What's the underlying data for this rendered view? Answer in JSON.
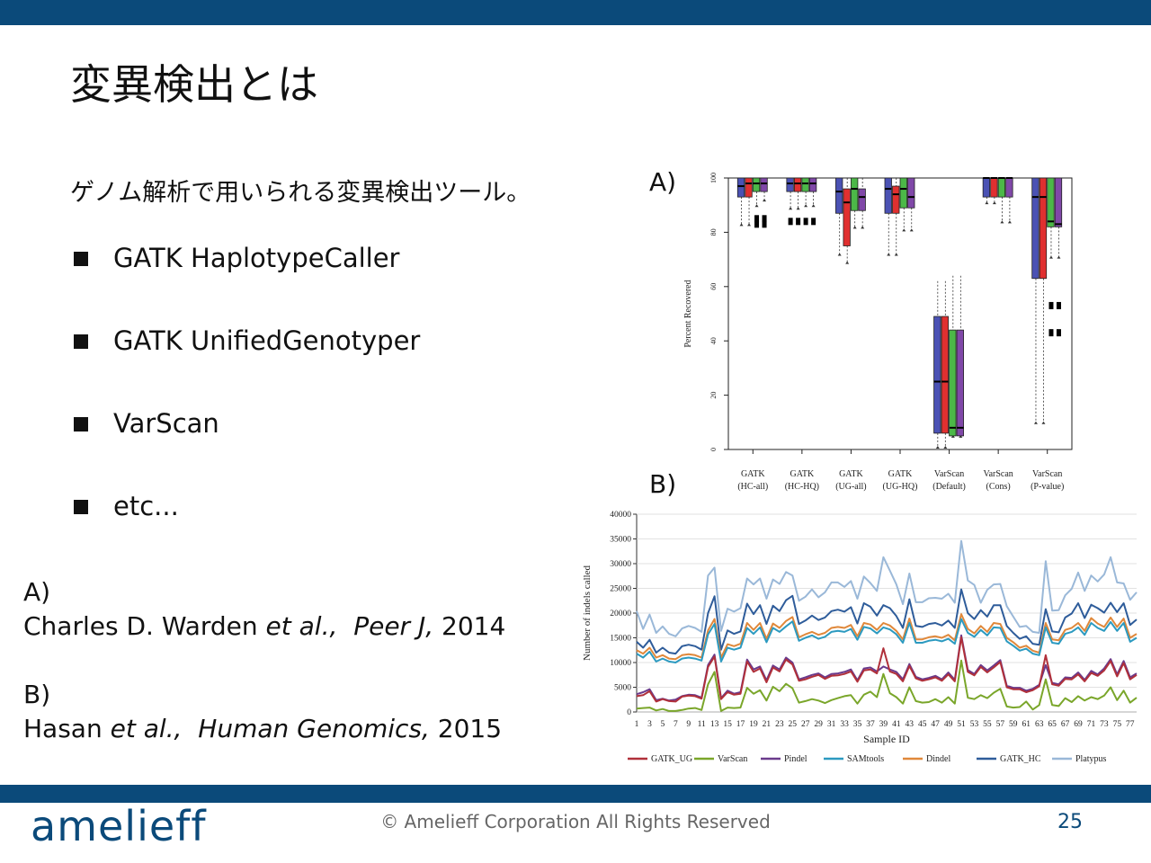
{
  "slide": {
    "title": "変異検出とは",
    "subtitle": "ゲノム解析で用いられる変異検出ツール。",
    "bullets": [
      "GATK HaplotypeCaller",
      "GATK UnifiedGenotyper",
      "VarScan",
      "etc..."
    ],
    "ref_a_label": "A)",
    "ref_a_author": "Charles D. Warden ",
    "ref_a_etal": "et al.,",
    "ref_a_journal": "Peer J,",
    "ref_a_year": "2014",
    "ref_b_label": "B)",
    "ref_b_author": "Hasan ",
    "ref_b_etal": "et al.,",
    "ref_b_journal": "Human Genomics,",
    "ref_b_year": "2015",
    "panel_a_label": "A)",
    "panel_b_label": "B)"
  },
  "footer": {
    "logo": "amelieff",
    "copyright": "© Amelieff Corporation All Rights Reserved",
    "page": "25"
  },
  "colors": {
    "bar": "#0b4a7a",
    "blue": "#4b52b4",
    "red": "#e03030",
    "green": "#4cb848",
    "purple": "#8048a8"
  },
  "chart_data": [
    {
      "type": "box",
      "ylabel": "Percent Recovered",
      "ylim": [
        0,
        100
      ],
      "yticks": [
        0,
        20,
        40,
        60,
        80,
        100
      ],
      "groups": [
        {
          "label1": "GATK",
          "label2": "(HC-all)",
          "boxes": [
            {
              "q1": 93,
              "med": 97,
              "q3": 100,
              "lo": 83,
              "hi": 100
            },
            {
              "q1": 93,
              "med": 98,
              "q3": 100,
              "lo": 83,
              "hi": 100
            },
            {
              "q1": 95,
              "med": 98,
              "q3": 100,
              "lo": 90,
              "hi": 100
            },
            {
              "q1": 95,
              "med": 98,
              "q3": 100,
              "lo": 92,
              "hi": 100
            }
          ],
          "outliers": [
            [
              2,
              83
            ],
            [
              2,
              85
            ],
            [
              3,
              83
            ],
            [
              3,
              85
            ]
          ]
        },
        {
          "label1": "GATK",
          "label2": "(HC-HQ)",
          "boxes": [
            {
              "q1": 95,
              "med": 98,
              "q3": 100,
              "lo": 89,
              "hi": 100
            },
            {
              "q1": 95,
              "med": 98,
              "q3": 100,
              "lo": 89,
              "hi": 100
            },
            {
              "q1": 95,
              "med": 98,
              "q3": 100,
              "lo": 90,
              "hi": 100
            },
            {
              "q1": 95,
              "med": 98,
              "q3": 100,
              "lo": 90,
              "hi": 100
            }
          ],
          "outliers": [
            [
              0,
              84
            ],
            [
              1,
              84
            ],
            [
              2,
              84
            ],
            [
              3,
              84
            ]
          ]
        },
        {
          "label1": "GATK",
          "label2": "(UG-all)",
          "boxes": [
            {
              "q1": 87,
              "med": 95,
              "q3": 100,
              "lo": 72,
              "hi": 100
            },
            {
              "q1": 75,
              "med": 91,
              "q3": 96,
              "lo": 69,
              "hi": 100
            },
            {
              "q1": 88,
              "med": 96,
              "q3": 100,
              "lo": 82,
              "hi": 100
            },
            {
              "q1": 88,
              "med": 93,
              "q3": 96,
              "lo": 82,
              "hi": 100
            }
          ],
          "outliers": []
        },
        {
          "label1": "GATK",
          "label2": "(UG-HQ)",
          "boxes": [
            {
              "q1": 87,
              "med": 96,
              "q3": 100,
              "lo": 72,
              "hi": 100
            },
            {
              "q1": 87,
              "med": 94,
              "q3": 97,
              "lo": 72,
              "hi": 100
            },
            {
              "q1": 89,
              "med": 96,
              "q3": 100,
              "lo": 81,
              "hi": 100
            },
            {
              "q1": 89,
              "med": 93,
              "q3": 100,
              "lo": 81,
              "hi": 100
            }
          ],
          "outliers": []
        },
        {
          "label1": "VarScan",
          "label2": "(Default)",
          "boxes": [
            {
              "q1": 6,
              "med": 25,
              "q3": 49,
              "lo": 1,
              "hi": 62
            },
            {
              "q1": 6,
              "med": 25,
              "q3": 49,
              "lo": 1,
              "hi": 62
            },
            {
              "q1": 5,
              "med": 8,
              "q3": 44,
              "lo": 5,
              "hi": 64
            },
            {
              "q1": 5,
              "med": 8,
              "q3": 44,
              "lo": 5,
              "hi": 64
            }
          ],
          "outliers": []
        },
        {
          "label1": "VarScan",
          "label2": "(Cons)",
          "boxes": [
            {
              "q1": 93,
              "med": 100,
              "q3": 100,
              "lo": 91,
              "hi": 100
            },
            {
              "q1": 93,
              "med": 100,
              "q3": 100,
              "lo": 91,
              "hi": 100
            },
            {
              "q1": 93,
              "med": 100,
              "q3": 100,
              "lo": 84,
              "hi": 100
            },
            {
              "q1": 93,
              "med": 100,
              "q3": 100,
              "lo": 84,
              "hi": 100
            }
          ],
          "outliers": []
        },
        {
          "label1": "VarScan",
          "label2": "(P-value)",
          "boxes": [
            {
              "q1": 63,
              "med": 93,
              "q3": 100,
              "lo": 10,
              "hi": 100
            },
            {
              "q1": 63,
              "med": 93,
              "q3": 100,
              "lo": 10,
              "hi": 100
            },
            {
              "q1": 82,
              "med": 84,
              "q3": 100,
              "lo": 71,
              "hi": 100
            },
            {
              "q1": 82,
              "med": 83,
              "q3": 100,
              "lo": 71,
              "hi": 100
            }
          ],
          "outliers": [
            [
              2,
              53
            ],
            [
              2,
              43
            ],
            [
              3,
              53
            ],
            [
              3,
              43
            ]
          ]
        }
      ]
    },
    {
      "type": "line",
      "xlabel": "Sample ID",
      "ylabel": "Number of indels called",
      "ylim": [
        0,
        40000
      ],
      "yticks": [
        0,
        5000,
        10000,
        15000,
        20000,
        25000,
        30000,
        35000,
        40000
      ],
      "xticks": [
        1,
        3,
        5,
        7,
        9,
        11,
        13,
        15,
        17,
        19,
        21,
        23,
        25,
        27,
        29,
        31,
        33,
        35,
        37,
        39,
        41,
        43,
        45,
        47,
        49,
        51,
        53,
        55,
        57,
        59,
        61,
        63,
        65,
        67,
        69,
        71,
        73,
        75,
        77
      ],
      "x_first": 1,
      "x_last": 78,
      "series": [
        {
          "name": "GATK_UG",
          "color": "#b0303a",
          "values": [
            3200,
            3400,
            4200,
            2100,
            2600,
            2200,
            2100,
            3100,
            3300,
            3200,
            2700,
            9100,
            11200,
            2600,
            4000,
            3500,
            3700,
            10200,
            8100,
            8800,
            6000,
            9000,
            8200,
            10600,
            9600,
            6300,
            6600,
            7100,
            7500,
            6700,
            7300,
            7400,
            7700,
            8200,
            6100,
            8400,
            8600,
            7800,
            12900,
            8200,
            7700,
            6200,
            9300,
            6800,
            6300,
            6600,
            7000,
            6300,
            7600,
            6200,
            15100,
            8100,
            7400,
            9100,
            8000,
            9000,
            10100,
            5000,
            4600,
            4600,
            4000,
            4400,
            5200,
            11500,
            5600,
            5300,
            6700,
            6600,
            7600,
            6200,
            7900,
            7300,
            8400,
            10300,
            7200,
            9900,
            6600,
            7500
          ]
        },
        {
          "name": "VarScan",
          "color": "#7aa62a",
          "values": [
            700,
            800,
            900,
            300,
            600,
            200,
            200,
            400,
            700,
            800,
            400,
            5600,
            8100,
            200,
            900,
            800,
            900,
            4900,
            3700,
            4400,
            2300,
            5100,
            4200,
            5700,
            4800,
            1900,
            2200,
            2600,
            2300,
            1800,
            2400,
            2800,
            3200,
            3400,
            1700,
            3500,
            4100,
            3000,
            7700,
            3800,
            3000,
            1700,
            5000,
            2200,
            1900,
            2000,
            2600,
            1900,
            3000,
            1700,
            10400,
            2900,
            2600,
            3400,
            2800,
            3900,
            4700,
            1100,
            900,
            1000,
            2100,
            500,
            1400,
            6600,
            1400,
            1200,
            2800,
            2000,
            3200,
            2300,
            3000,
            2600,
            3300,
            5000,
            2400,
            4300,
            1900,
            2900
          ]
        },
        {
          "name": "Pindel",
          "color": "#6a3a8c",
          "values": [
            3600,
            4000,
            4600,
            2400,
            2700,
            2300,
            2500,
            3200,
            3500,
            3400,
            2900,
            9500,
            11600,
            2800,
            4300,
            3700,
            4000,
            10600,
            8600,
            9200,
            6400,
            9400,
            8600,
            11000,
            10000,
            6600,
            7000,
            7500,
            7800,
            7000,
            7700,
            7800,
            8100,
            8600,
            6400,
            8800,
            9000,
            8200,
            9200,
            8600,
            8100,
            6600,
            9700,
            7100,
            6600,
            6900,
            7300,
            6600,
            8000,
            6500,
            15500,
            8500,
            7700,
            9500,
            8400,
            9400,
            10500,
            5300,
            4900,
            4900,
            4300,
            4700,
            5500,
            9500,
            5900,
            5600,
            7000,
            6900,
            8000,
            6500,
            8300,
            7600,
            8800,
            10700,
            7600,
            10300,
            7000,
            7800
          ]
        },
        {
          "name": "SAMtools",
          "color": "#2c9ac0",
          "values": [
            11800,
            11000,
            12200,
            10200,
            10800,
            10200,
            10000,
            10800,
            11000,
            10800,
            10400,
            15700,
            17800,
            10200,
            13000,
            12600,
            13000,
            17000,
            15800,
            17100,
            14100,
            17000,
            16200,
            17300,
            18300,
            14400,
            15000,
            15500,
            14800,
            15200,
            16200,
            16400,
            16200,
            16800,
            14600,
            17200,
            16900,
            15900,
            17100,
            16700,
            15700,
            14000,
            18000,
            14000,
            14000,
            14400,
            14600,
            14300,
            14800,
            13800,
            18800,
            16000,
            15200,
            16600,
            15500,
            17100,
            17000,
            14300,
            13400,
            12400,
            12800,
            11800,
            11500,
            17100,
            14000,
            13800,
            15800,
            16200,
            17100,
            15600,
            18000,
            17000,
            16400,
            18200,
            16400,
            18000,
            14200,
            15000
          ]
        },
        {
          "name": "Dindel",
          "color": "#e0883a",
          "values": [
            12500,
            11800,
            13000,
            11000,
            11500,
            10800,
            10700,
            11500,
            11700,
            11500,
            11000,
            16500,
            18800,
            11000,
            13700,
            13300,
            13800,
            18000,
            16600,
            18000,
            14800,
            17900,
            17000,
            18400,
            19200,
            15100,
            15700,
            16200,
            15600,
            16000,
            17000,
            17200,
            17000,
            17600,
            15300,
            18000,
            17700,
            16600,
            18000,
            17500,
            16400,
            14700,
            18900,
            14700,
            14700,
            15100,
            15300,
            15000,
            15600,
            14500,
            19800,
            16800,
            15900,
            17400,
            16200,
            18000,
            17800,
            15000,
            14100,
            13000,
            13400,
            12400,
            12000,
            18000,
            14700,
            14500,
            16600,
            17000,
            18000,
            16400,
            19000,
            17900,
            17200,
            19100,
            17200,
            18900,
            15000,
            15800
          ]
        },
        {
          "name": "GATK_HC",
          "color": "#2e5c9a",
          "values": [
            14200,
            13000,
            14600,
            12000,
            13000,
            12000,
            11800,
            13300,
            13600,
            13300,
            12600,
            20000,
            23400,
            12600,
            16500,
            15800,
            16300,
            21900,
            19800,
            21600,
            17800,
            21500,
            20400,
            22600,
            23500,
            17800,
            18500,
            19500,
            18600,
            19100,
            20400,
            20700,
            20300,
            21200,
            17900,
            22000,
            21300,
            19500,
            21600,
            21000,
            19400,
            17000,
            22800,
            17400,
            17200,
            17800,
            18000,
            17500,
            18500,
            17000,
            24800,
            20000,
            18800,
            20600,
            19300,
            21600,
            21600,
            17400,
            16000,
            14800,
            15300,
            13800,
            13600,
            20800,
            16300,
            16100,
            19100,
            19900,
            22000,
            19000,
            21700,
            21000,
            20100,
            22100,
            20200,
            22000,
            17600,
            18700
          ]
        },
        {
          "name": "Platypus",
          "color": "#9ab8d8",
          "values": [
            20400,
            16800,
            19700,
            16000,
            17300,
            15800,
            15300,
            16900,
            17400,
            17000,
            16200,
            27600,
            29200,
            16400,
            20900,
            20300,
            21000,
            27000,
            25800,
            27000,
            22900,
            26800,
            25900,
            28300,
            27600,
            22500,
            23300,
            24800,
            23200,
            24200,
            26200,
            26200,
            25300,
            26500,
            22900,
            27400,
            26100,
            24500,
            31300,
            28600,
            25800,
            21800,
            28000,
            22200,
            22200,
            23000,
            23100,
            22900,
            23900,
            22100,
            34600,
            26600,
            25700,
            22100,
            24700,
            25800,
            25900,
            21400,
            19300,
            17200,
            17400,
            16200,
            16000,
            30500,
            20500,
            20600,
            23600,
            24900,
            28200,
            24500,
            27600,
            26400,
            27800,
            31300,
            26200,
            26000,
            22700,
            24200
          ]
        }
      ]
    }
  ]
}
